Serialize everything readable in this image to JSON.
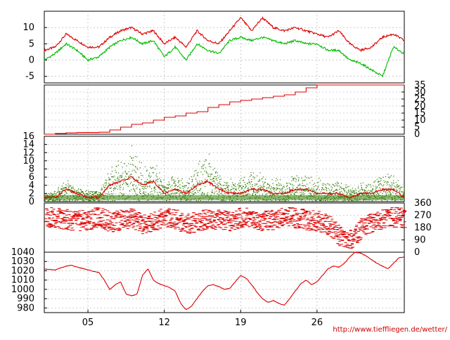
{
  "source_credit": "http://www.tieffliegen.de/wetter/",
  "colors": {
    "red": "#dd0000",
    "green": "#00bb00",
    "dark_green": "#2d7a00",
    "grid": "#aaaaaa"
  },
  "chart_data": [
    {
      "type": "line",
      "panel": "temperature",
      "ylim": [
        -7,
        15
      ],
      "yticks": [
        -5,
        0,
        5,
        10
      ],
      "ytick_side": "left",
      "series": [
        {
          "color": "red",
          "x": [
            0,
            1,
            2,
            3,
            4,
            5,
            6,
            7,
            8,
            9,
            10,
            11,
            12,
            13,
            14,
            15,
            16,
            17,
            18,
            19,
            20,
            21,
            22,
            23,
            24,
            25,
            26,
            27,
            28,
            29,
            30,
            31,
            32,
            33
          ],
          "y": [
            3,
            4,
            8,
            6,
            4,
            4,
            7,
            9,
            10,
            8,
            9,
            5,
            7,
            4,
            9,
            6,
            5,
            9,
            13,
            9,
            13,
            10,
            9,
            10,
            9,
            8,
            7,
            9,
            5,
            3,
            4,
            7,
            8,
            6
          ]
        },
        {
          "color": "green",
          "x": [
            0,
            1,
            2,
            3,
            4,
            5,
            6,
            7,
            8,
            9,
            10,
            11,
            12,
            13,
            14,
            15,
            16,
            17,
            18,
            19,
            20,
            21,
            22,
            23,
            24,
            25,
            26,
            27,
            28,
            29,
            30,
            31,
            32,
            33
          ],
          "y": [
            0,
            2,
            5,
            3,
            0,
            1,
            4,
            6,
            7,
            5,
            6,
            1,
            4,
            0,
            5,
            3,
            2,
            6,
            7,
            6,
            7,
            6,
            5,
            6,
            5,
            5,
            3,
            3,
            0,
            -1,
            -3,
            -5,
            4,
            2
          ]
        }
      ]
    },
    {
      "type": "line",
      "panel": "precipitation_cumulative",
      "ylim": [
        0,
        35
      ],
      "yticks": [
        0,
        5,
        10,
        15,
        20,
        25,
        30,
        35
      ],
      "ytick_side": "right",
      "series": [
        {
          "color": "red",
          "step": true,
          "x": [
            0,
            1,
            2,
            3,
            5,
            6,
            7,
            8,
            9,
            10,
            11,
            12,
            13,
            14,
            15,
            16,
            17,
            18,
            19,
            20,
            21,
            22,
            23,
            24,
            25,
            26,
            33
          ],
          "y": [
            0,
            0.5,
            1,
            1.2,
            1.4,
            3,
            5,
            7,
            8,
            10,
            12,
            13,
            15,
            16,
            19,
            21,
            23,
            24,
            25,
            26,
            27,
            28,
            30,
            33,
            35,
            35,
            35
          ]
        }
      ]
    },
    {
      "type": "line",
      "panel": "wind_speed",
      "ylim": [
        0,
        16
      ],
      "yticks": [
        0,
        2,
        4,
        6,
        8,
        10,
        12,
        14,
        16
      ],
      "ytick_side": "left",
      "series": [
        {
          "color": "dark_green",
          "style": "speckle",
          "x": [
            0,
            1,
            2,
            3,
            4,
            5,
            6,
            7,
            8,
            9,
            10,
            11,
            12,
            13,
            14,
            15,
            16,
            17,
            18,
            19,
            20,
            21,
            22,
            23,
            24,
            25,
            26,
            27,
            28,
            29,
            30,
            31,
            32,
            33
          ],
          "y": [
            2,
            3,
            6,
            4,
            3,
            3,
            10,
            12,
            15,
            9,
            11,
            6,
            8,
            5,
            10,
            14,
            7,
            6,
            6,
            9,
            7,
            6,
            6,
            8,
            7,
            6,
            5,
            6,
            4,
            5,
            5,
            8,
            7,
            4
          ]
        },
        {
          "color": "red",
          "x": [
            0,
            1,
            2,
            3,
            4,
            5,
            6,
            7,
            8,
            9,
            10,
            11,
            12,
            13,
            14,
            15,
            16,
            17,
            18,
            19,
            20,
            21,
            22,
            23,
            24,
            25,
            26,
            27,
            28,
            29,
            30,
            31,
            32,
            33
          ],
          "y": [
            1,
            1,
            3,
            2,
            1,
            1,
            4,
            5,
            6,
            4,
            5,
            2,
            3,
            2,
            4,
            5,
            3,
            2,
            2,
            3,
            3,
            2,
            2,
            3,
            3,
            2,
            2,
            2,
            1,
            2,
            2,
            3,
            3,
            1
          ]
        }
      ]
    },
    {
      "type": "scatter",
      "panel": "wind_direction",
      "ylim": [
        0,
        360
      ],
      "yticks": [
        0,
        90,
        180,
        270,
        360
      ],
      "ytick_side": "right",
      "series": [
        {
          "color": "red",
          "x": [
            0,
            1,
            2,
            3,
            4,
            5,
            6,
            7,
            8,
            9,
            10,
            11,
            12,
            13,
            14,
            15,
            16,
            17,
            18,
            19,
            20,
            21,
            22,
            23,
            24,
            25,
            26,
            27,
            28,
            29,
            30,
            31,
            32,
            33
          ],
          "y": [
            260,
            250,
            240,
            230,
            240,
            260,
            220,
            240,
            250,
            200,
            230,
            260,
            240,
            210,
            230,
            250,
            240,
            220,
            260,
            250,
            230,
            240,
            260,
            250,
            240,
            230,
            200,
            120,
            90,
            180,
            220,
            250,
            260,
            250
          ]
        }
      ]
    },
    {
      "type": "line",
      "panel": "pressure",
      "ylim": [
        975,
        1040
      ],
      "yticks": [
        980,
        990,
        1000,
        1010,
        1020,
        1030,
        1040
      ],
      "ytick_side": "left",
      "x_range": [
        0,
        33
      ],
      "xticks": [
        {
          "x": 4,
          "label": "05"
        },
        {
          "x": 11,
          "label": "12"
        },
        {
          "x": 18,
          "label": "19"
        },
        {
          "x": 25,
          "label": "26"
        }
      ],
      "series": [
        {
          "color": "red",
          "x": [
            0,
            1,
            2,
            2.5,
            3,
            4,
            5,
            5.5,
            6,
            6.5,
            7,
            7.5,
            8,
            8.5,
            9,
            9.5,
            10,
            10.5,
            11,
            11.5,
            12,
            12.5,
            13,
            13.5,
            14,
            14.5,
            15,
            15.5,
            16,
            16.5,
            17,
            17.5,
            18,
            18.5,
            19,
            19.5,
            20,
            20.5,
            21,
            21.5,
            22,
            22.5,
            23,
            23.5,
            24,
            24.5,
            25,
            25.5,
            26,
            26.5,
            27,
            27.5,
            28,
            28.5,
            29,
            29.5,
            30,
            30.5,
            31,
            31.5,
            32,
            32.5,
            33
          ],
          "y": [
            1022,
            1021,
            1025,
            1026,
            1024,
            1021,
            1018,
            1010,
            1000,
            1005,
            1008,
            995,
            993,
            995,
            1015,
            1022,
            1010,
            1006,
            1004,
            1002,
            998,
            985,
            978,
            982,
            990,
            998,
            1004,
            1005,
            1003,
            1000,
            1001,
            1008,
            1015,
            1012,
            1005,
            997,
            990,
            986,
            988,
            985,
            983,
            990,
            998,
            1006,
            1010,
            1005,
            1008,
            1015,
            1022,
            1025,
            1024,
            1028,
            1035,
            1040,
            1039,
            1036,
            1032,
            1028,
            1025,
            1022,
            1028,
            1034,
            1035
          ]
        }
      ]
    }
  ]
}
